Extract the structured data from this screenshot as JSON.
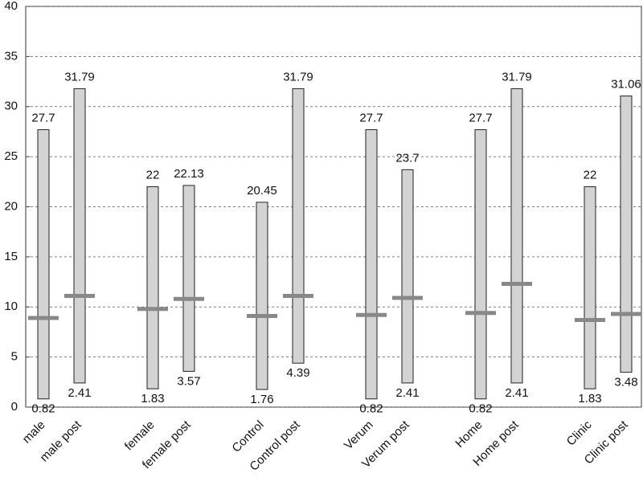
{
  "chart_data": {
    "type": "range_bar",
    "categories": [
      "male",
      "male post",
      "female",
      "female post",
      "Control",
      "Control post",
      "Verum",
      "Verum post",
      "Home",
      "Home post",
      "Clinic",
      "Clinic post"
    ],
    "high": [
      27.7,
      31.79,
      22,
      22.13,
      20.45,
      31.79,
      27.7,
      23.7,
      27.7,
      31.79,
      22,
      31.06
    ],
    "low": [
      0.82,
      2.41,
      1.83,
      3.57,
      1.76,
      4.39,
      0.82,
      2.41,
      0.82,
      2.41,
      1.83,
      3.48
    ],
    "median": [
      8.9,
      11.1,
      9.8,
      10.8,
      9.1,
      11.1,
      9.2,
      10.9,
      9.4,
      12.3,
      8.7,
      9.3
    ],
    "bar_color": "#d3d3d3",
    "median_color": "#888888",
    "ylim": [
      0,
      40
    ],
    "yticks": [
      0,
      5,
      10,
      15,
      20,
      25,
      30,
      35,
      40
    ],
    "grid": true
  }
}
